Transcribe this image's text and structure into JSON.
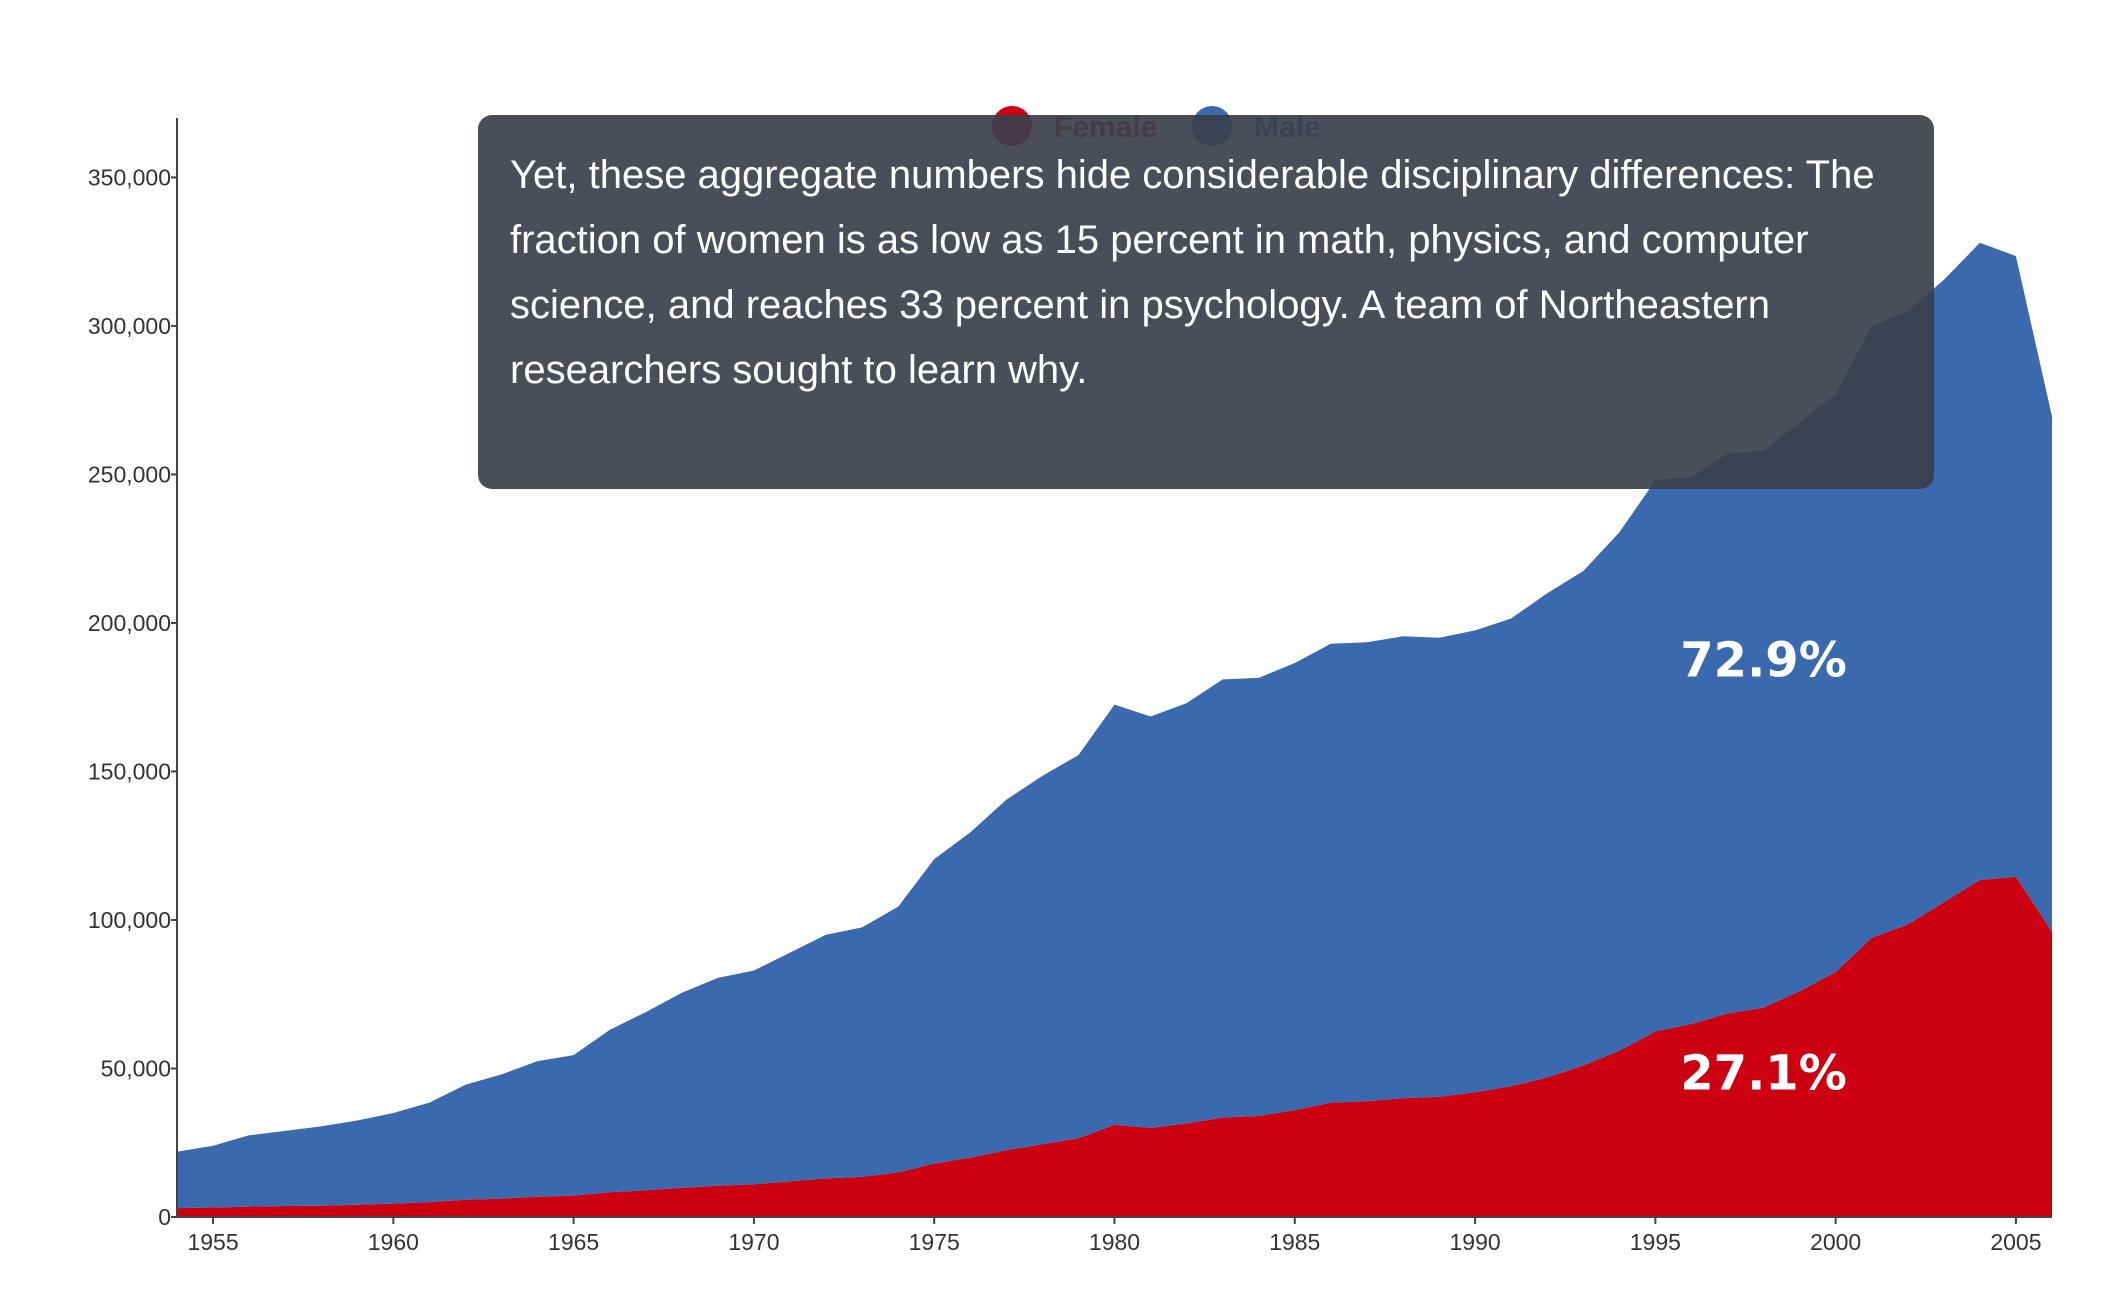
{
  "chart_data": {
    "type": "area",
    "stacked": true,
    "x": [
      1954,
      1955,
      1956,
      1957,
      1958,
      1959,
      1960,
      1961,
      1962,
      1963,
      1964,
      1965,
      1966,
      1967,
      1968,
      1969,
      1970,
      1971,
      1972,
      1973,
      1974,
      1975,
      1976,
      1977,
      1978,
      1979,
      1980,
      1981,
      1982,
      1983,
      1984,
      1985,
      1986,
      1987,
      1988,
      1989,
      1990,
      1991,
      1992,
      1993,
      1994,
      1995,
      1996,
      1997,
      1998,
      1999,
      2000,
      2001,
      2002,
      2003,
      2004,
      2005,
      2006
    ],
    "series": [
      {
        "name": "Female",
        "color": "#cc0011",
        "values": [
          3000,
          3200,
          3500,
          3700,
          3800,
          4100,
          4500,
          5000,
          5800,
          6200,
          6800,
          7200,
          8300,
          9000,
          9800,
          10500,
          11000,
          12000,
          13000,
          13500,
          15000,
          18000,
          20000,
          22500,
          24500,
          26500,
          31000,
          30000,
          31500,
          33500,
          34000,
          36000,
          38500,
          39000,
          40000,
          40500,
          42000,
          44000,
          47000,
          51000,
          56000,
          62500,
          65000,
          68500,
          70500,
          76000,
          82500,
          94000,
          98500,
          106000,
          113500,
          114500,
          96000
        ]
      },
      {
        "name": "Male",
        "color": "#3a6aad",
        "values": [
          19000,
          20800,
          24000,
          25300,
          26700,
          28400,
          30500,
          33500,
          38700,
          41800,
          45700,
          47300,
          54700,
          60000,
          65700,
          70000,
          72000,
          77000,
          82000,
          84000,
          89500,
          102500,
          109500,
          118000,
          124000,
          129000,
          141500,
          138500,
          141500,
          147500,
          147500,
          150500,
          154500,
          154500,
          155500,
          154500,
          155500,
          157500,
          163000,
          166500,
          174500,
          185500,
          184000,
          188500,
          187500,
          191500,
          194500,
          206000,
          206500,
          209500,
          214500,
          209000,
          173500
        ]
      }
    ],
    "xticks": [
      1955,
      1960,
      1965,
      1970,
      1975,
      1980,
      1985,
      1990,
      1995,
      2000,
      2005
    ],
    "yticks": [
      0,
      50000,
      100000,
      150000,
      200000,
      250000,
      300000,
      350000
    ],
    "ytick_labels": [
      "0",
      "50,000",
      "100,000",
      "150,000",
      "200,000",
      "250,000",
      "300,000",
      "350,000"
    ],
    "xlim": [
      1954,
      2006
    ],
    "ylim": [
      0,
      370000
    ],
    "legend_position": "top-center",
    "annotations": [
      {
        "series": "Male",
        "text": "72.9%",
        "x": 1998,
        "y": 182000
      },
      {
        "series": "Female",
        "text": "27.1%",
        "x": 1998,
        "y": 43000
      }
    ],
    "grid": false
  },
  "tooltip": {
    "text": "Yet, these aggregate numbers hide considerable disciplinary differences: The fraction of women is as low as 15 percent in math, physics, and computer science, and reaches 33 percent in psychology. A team of Northeastern researchers sought to learn why."
  }
}
